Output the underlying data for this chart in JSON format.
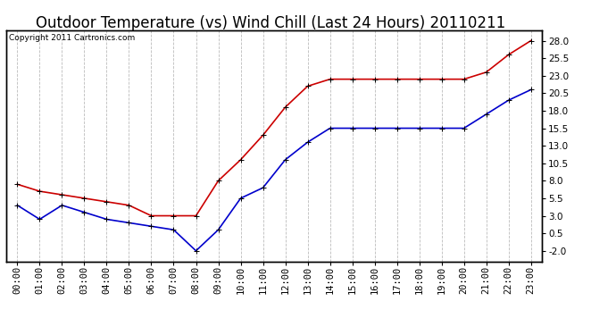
{
  "title": "Outdoor Temperature (vs) Wind Chill (Last 24 Hours) 20110211",
  "copyright_text": "Copyright 2011 Cartronics.com",
  "hours": [
    "00:00",
    "01:00",
    "02:00",
    "03:00",
    "04:00",
    "05:00",
    "06:00",
    "07:00",
    "08:00",
    "09:00",
    "10:00",
    "11:00",
    "12:00",
    "13:00",
    "14:00",
    "15:00",
    "16:00",
    "17:00",
    "18:00",
    "19:00",
    "20:00",
    "21:00",
    "22:00",
    "23:00"
  ],
  "temp": [
    7.5,
    6.5,
    6.0,
    5.5,
    5.0,
    4.5,
    3.0,
    3.0,
    3.0,
    8.0,
    11.0,
    14.5,
    18.5,
    21.5,
    22.5,
    22.5,
    22.5,
    22.5,
    22.5,
    22.5,
    22.5,
    23.5,
    26.0,
    28.0
  ],
  "wind_chill": [
    4.5,
    2.5,
    4.5,
    3.5,
    2.5,
    2.0,
    1.5,
    1.0,
    -2.0,
    1.0,
    5.5,
    7.0,
    11.0,
    13.5,
    15.5,
    15.5,
    15.5,
    15.5,
    15.5,
    15.5,
    15.5,
    17.5,
    19.5,
    21.0
  ],
  "temp_color": "#cc0000",
  "wind_chill_color": "#0000cc",
  "background_color": "#ffffff",
  "grid_color": "#bbbbbb",
  "yticks": [
    -2.0,
    0.5,
    3.0,
    5.5,
    8.0,
    10.5,
    13.0,
    15.5,
    18.0,
    20.5,
    23.0,
    25.5,
    28.0
  ],
  "ylim": [
    -3.5,
    29.5
  ],
  "title_fontsize": 12,
  "copyright_fontsize": 6.5,
  "tick_fontsize": 7.5,
  "marker": "+",
  "marker_size": 5,
  "line_width": 1.2
}
